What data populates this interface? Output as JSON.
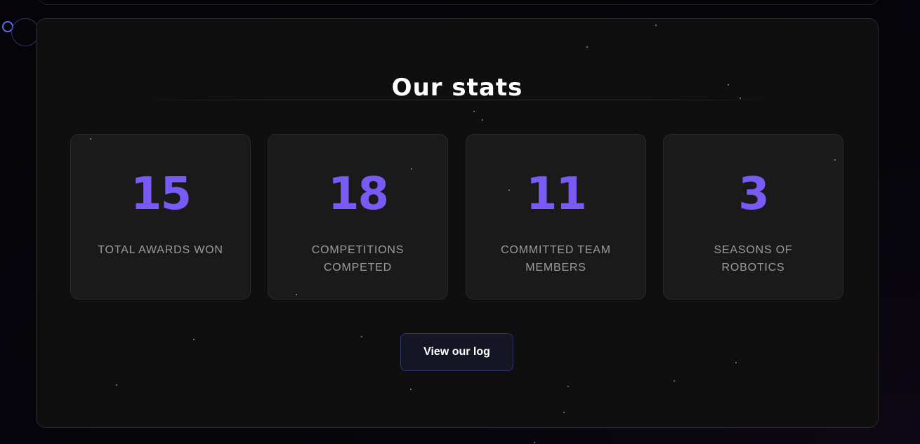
{
  "section": {
    "title": "Our stats"
  },
  "stats": [
    {
      "value": "15",
      "label": "TOTAL AWARDS WON"
    },
    {
      "value": "18",
      "label": "COMPETITIONS COMPETED"
    },
    {
      "value": "11",
      "label": "COMMITTED TEAM MEMBERS"
    },
    {
      "value": "3",
      "label": "SEASONS OF ROBOTICS"
    }
  ],
  "cta": {
    "label": "View our log"
  },
  "colors": {
    "accent": "#7a5af5",
    "background": "#0f0f0f",
    "card": "#1a1a1a"
  }
}
